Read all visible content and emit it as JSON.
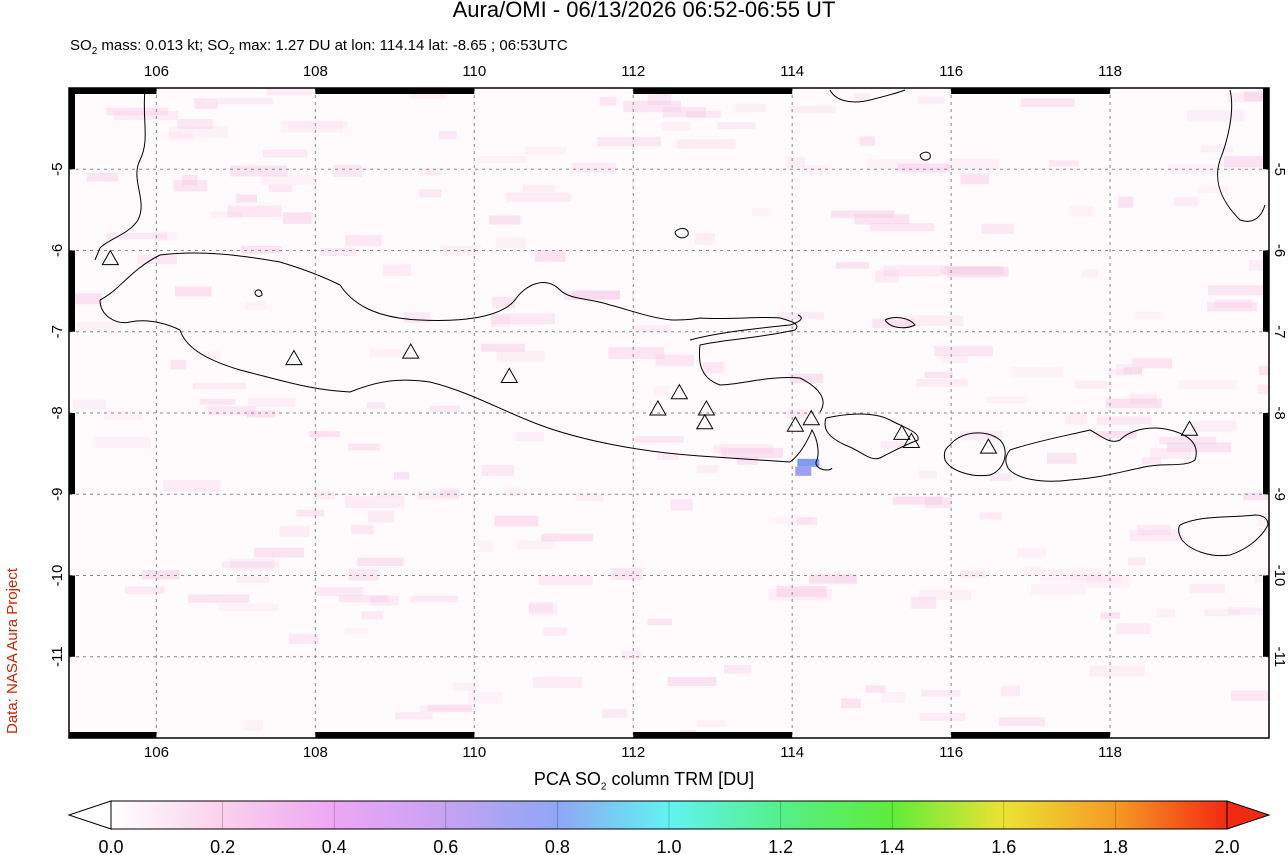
{
  "header": {
    "title": "Aura/OMI - 06/13/2026 06:52-06:55 UT",
    "subtitle_part1": "SO",
    "subtitle_sub1": "2",
    "subtitle_part2": " mass: 0.013 kt; SO",
    "subtitle_sub2": "2",
    "subtitle_part3": " max: 1.27 DU at lon: 114.14 lat: -8.65 ; 06:53UTC"
  },
  "credit": "Data: NASA Aura Project",
  "map": {
    "lon_range": [
      104.9,
      120.0
    ],
    "lat_range": [
      -12.0,
      -4.0
    ],
    "lon_ticks": [
      "106",
      "108",
      "110",
      "112",
      "114",
      "116",
      "118"
    ],
    "lat_ticks": [
      "-5",
      "-6",
      "-7",
      "-8",
      "-9",
      "-10",
      "-11"
    ],
    "gridlines": true,
    "so2_max": {
      "lon": 114.14,
      "lat": -8.65,
      "value_du": 1.27
    },
    "volcano_marker": "triangle-icon"
  },
  "colorbar": {
    "label_part1": "PCA SO",
    "label_sub": "2",
    "label_part2": " column TRM [DU]",
    "ticks": [
      "0.0",
      "0.2",
      "0.4",
      "0.6",
      "0.8",
      "1.0",
      "1.2",
      "1.4",
      "1.6",
      "1.8",
      "2.0"
    ],
    "colors": [
      "#ffffff",
      "#fbd0ec",
      "#eea6f5",
      "#c6a2f3",
      "#8fa6f5",
      "#62f2f2",
      "#55ef8a",
      "#60ec3a",
      "#ece235",
      "#f59a25",
      "#f22a12"
    ]
  }
}
